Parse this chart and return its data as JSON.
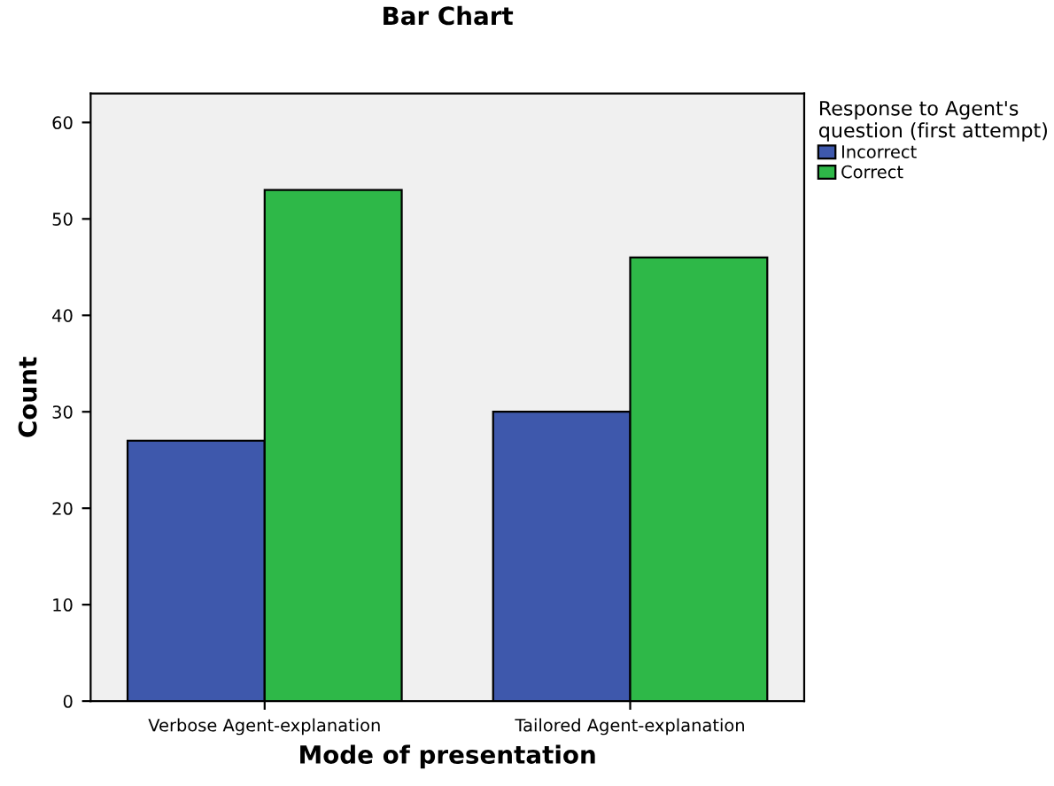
{
  "chart_data": {
    "type": "bar",
    "title": "Bar Chart",
    "xlabel": "Mode of presentation",
    "ylabel": "Count",
    "categories": [
      "Verbose Agent-explanation",
      "Tailored Agent-explanation"
    ],
    "series": [
      {
        "name": "Incorrect",
        "color": "#3e58ac",
        "values": [
          27,
          30
        ]
      },
      {
        "name": "Correct",
        "color": "#2eb848",
        "values": [
          53,
          46
        ]
      }
    ],
    "legend_title": "Response to Agent's\nquestion (first attempt)",
    "legend": "right",
    "ylim": [
      0,
      63
    ],
    "yticks": [
      0,
      10,
      20,
      30,
      40,
      50,
      60
    ],
    "grid": false
  }
}
